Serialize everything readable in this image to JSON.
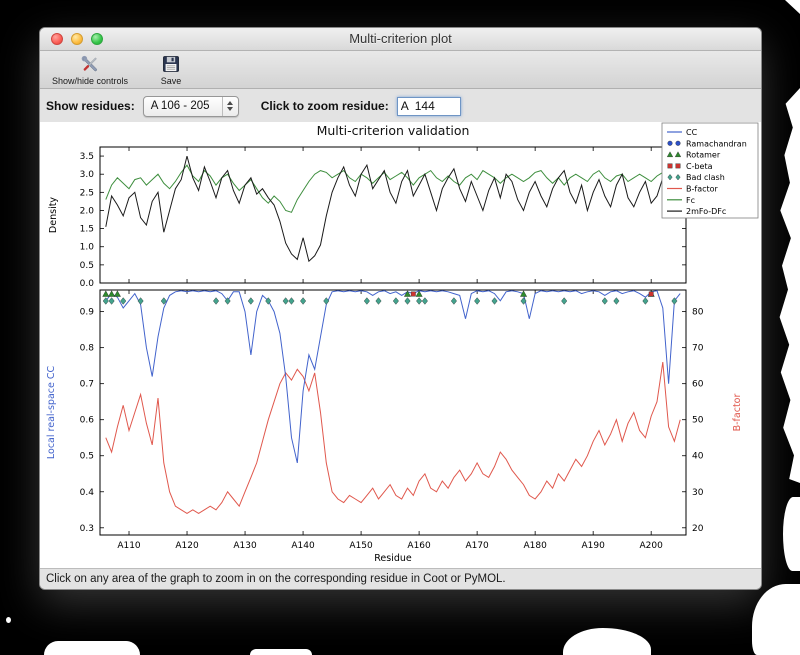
{
  "window": {
    "title": "Multi-criterion plot",
    "toolbar": {
      "show_hide_label": "Show/hide controls",
      "save_label": "Save"
    },
    "controls": {
      "show_residues_label": "Show residues:",
      "residue_range_value": "A 106 - 205",
      "zoom_label": "Click to zoom residue:",
      "zoom_value": "A  144"
    },
    "status_bar": "Click on any area of the graph to zoom in on the corresponding residue in Coot or PyMOL."
  },
  "chart_data": {
    "type": "line",
    "title": "Multi-criterion validation",
    "xlabel": "Residue",
    "x_range": [
      106,
      205
    ],
    "x_ticks": [
      "A110",
      "A120",
      "A130",
      "A140",
      "A150",
      "A160",
      "A170",
      "A180",
      "A190",
      "A200"
    ],
    "legend_position": "upper right outside",
    "legend": [
      {
        "label": "CC",
        "type": "line",
        "color": "#4263cc"
      },
      {
        "label": "Ramachandran",
        "type": "circle",
        "color": "#2c50c8"
      },
      {
        "label": "Rotamer",
        "type": "triangle",
        "color": "#2e8b2e"
      },
      {
        "label": "C-beta",
        "type": "square",
        "color": "#cc3430"
      },
      {
        "label": "Bad clash",
        "type": "diamond",
        "color": "#43a38d"
      },
      {
        "label": "B-factor",
        "type": "line",
        "color": "#e0584d"
      },
      {
        "label": "Fc",
        "type": "line",
        "color": "#3e8e3e"
      },
      {
        "label": "2mFo-DFc",
        "type": "line",
        "color": "#1a1a1a"
      }
    ],
    "marker_colors": {
      "rotamer": "#2e8b2e",
      "cbeta": "#cc3430",
      "clash": "#43a38d",
      "ramachandran": "#2c50c8"
    },
    "top_plot": {
      "ylabel": "Density",
      "ylim": [
        0.0,
        3.75
      ],
      "yticks": [
        0.0,
        0.5,
        1.0,
        1.5,
        2.0,
        2.5,
        3.0,
        3.5
      ],
      "series": [
        {
          "name": "Fc",
          "color": "#3e8e3e",
          "values": [
            2.3,
            2.7,
            2.9,
            2.75,
            2.6,
            2.85,
            2.9,
            2.7,
            2.85,
            3.0,
            2.75,
            2.6,
            2.8,
            3.05,
            3.25,
            2.95,
            2.8,
            3.1,
            2.95,
            2.7,
            2.9,
            3.0,
            2.75,
            2.55,
            2.7,
            2.85,
            2.6,
            2.35,
            2.2,
            2.4,
            2.25,
            2.0,
            1.95,
            2.3,
            2.55,
            2.8,
            3.0,
            3.1,
            3.05,
            2.9,
            3.0,
            3.1,
            2.9,
            2.8,
            3.0,
            2.9,
            2.75,
            2.9,
            3.05,
            2.85,
            2.95,
            3.05,
            2.9,
            2.7,
            2.9,
            3.0,
            3.1,
            2.9,
            2.8,
            2.95,
            2.8,
            2.7,
            2.9,
            3.0,
            2.85,
            3.1,
            3.0,
            2.9,
            2.75,
            2.9,
            3.0,
            2.9,
            2.8,
            2.9,
            3.05,
            3.1,
            2.9,
            2.75,
            2.9,
            2.7,
            2.9,
            3.0,
            2.9,
            2.8,
            3.0,
            3.1,
            2.9,
            2.8,
            2.95,
            3.0,
            2.8,
            2.9,
            3.0,
            2.9,
            2.8,
            2.95,
            3.05,
            2.9,
            2.8,
            2.9
          ]
        },
        {
          "name": "2mFo-DFc",
          "color": "#1a1a1a",
          "values": [
            1.55,
            2.4,
            2.15,
            1.85,
            2.35,
            2.5,
            1.8,
            1.6,
            2.25,
            2.5,
            1.4,
            2.0,
            2.6,
            2.85,
            3.5,
            2.9,
            2.55,
            3.2,
            2.8,
            2.35,
            2.9,
            3.1,
            2.55,
            2.2,
            2.7,
            2.9,
            2.45,
            2.6,
            2.35,
            2.15,
            1.7,
            1.1,
            0.8,
            0.65,
            1.25,
            0.6,
            0.75,
            1.05,
            1.85,
            2.5,
            2.9,
            3.2,
            2.7,
            2.4,
            3.0,
            3.25,
            2.6,
            2.85,
            3.1,
            2.5,
            2.2,
            2.8,
            3.1,
            2.4,
            2.7,
            3.0,
            2.5,
            2.0,
            2.6,
            2.9,
            3.15,
            2.6,
            2.25,
            2.8,
            2.4,
            2.0,
            2.55,
            2.9,
            2.35,
            3.0,
            2.8,
            2.3,
            2.0,
            2.5,
            2.8,
            2.4,
            2.1,
            2.6,
            2.9,
            3.1,
            2.5,
            2.2,
            2.7,
            2.0,
            2.5,
            2.85,
            2.4,
            2.1,
            2.7,
            3.0,
            2.35,
            2.1,
            2.5,
            2.8,
            2.2,
            2.4,
            2.9,
            2.5,
            2.15,
            2.45
          ]
        }
      ]
    },
    "bottom_plot": {
      "ylabel_left": "Local real-space CC",
      "ylabel_left_color": "#4263cc",
      "ylabel_right": "B-factor",
      "ylabel_right_color": "#e0584d",
      "ylim_left": [
        0.28,
        0.96
      ],
      "yticks_left": [
        0.3,
        0.4,
        0.5,
        0.6,
        0.7,
        0.8,
        0.9
      ],
      "ylim_right": [
        18,
        86
      ],
      "yticks_right": [
        20,
        30,
        40,
        50,
        60,
        70,
        80
      ],
      "cc_series": {
        "name": "CC",
        "color": "#4263cc",
        "values": [
          0.93,
          0.95,
          0.94,
          0.91,
          0.93,
          0.95,
          0.92,
          0.8,
          0.72,
          0.83,
          0.91,
          0.945,
          0.955,
          0.96,
          0.955,
          0.96,
          0.955,
          0.96,
          0.955,
          0.96,
          0.95,
          0.93,
          0.955,
          0.955,
          0.9,
          0.78,
          0.9,
          0.945,
          0.93,
          0.9,
          0.84,
          0.72,
          0.55,
          0.48,
          0.68,
          0.78,
          0.74,
          0.83,
          0.92,
          0.955,
          0.96,
          0.955,
          0.96,
          0.955,
          0.96,
          0.955,
          0.945,
          0.955,
          0.96,
          0.95,
          0.955,
          0.945,
          0.955,
          0.95,
          0.96,
          0.955,
          0.96,
          0.955,
          0.96,
          0.955,
          0.95,
          0.945,
          0.88,
          0.95,
          0.96,
          0.955,
          0.96,
          0.95,
          0.93,
          0.955,
          0.96,
          0.955,
          0.95,
          0.88,
          0.95,
          0.96,
          0.955,
          0.96,
          0.955,
          0.96,
          0.955,
          0.96,
          0.95,
          0.955,
          0.96,
          0.955,
          0.945,
          0.955,
          0.96,
          0.95,
          0.955,
          0.96,
          0.95,
          0.94,
          0.955,
          0.96,
          0.91,
          0.7,
          0.93,
          0.95
        ]
      },
      "bfactor_series": {
        "name": "B-factor",
        "color": "#e0584d",
        "values": [
          45,
          41,
          48,
          54,
          47,
          52,
          57,
          49,
          43,
          56,
          38,
          30,
          26,
          25,
          24,
          25,
          24,
          25,
          26,
          25,
          27,
          30,
          28,
          26,
          30,
          34,
          38,
          44,
          50,
          55,
          60,
          63,
          61,
          64,
          62,
          58,
          63,
          52,
          38,
          30,
          28,
          27,
          29,
          28,
          27,
          29,
          31,
          28,
          30,
          32,
          29,
          28,
          31,
          29,
          33,
          35,
          31,
          30,
          33,
          31,
          34,
          36,
          33,
          35,
          38,
          35,
          34,
          37,
          41,
          39,
          36,
          34,
          32,
          29,
          28,
          30,
          33,
          31,
          35,
          33,
          36,
          39,
          37,
          40,
          44,
          47,
          43,
          46,
          50,
          44,
          49,
          52,
          47,
          45,
          51,
          55,
          66,
          48,
          44,
          50
        ]
      },
      "markers": {
        "rotamer_residues": [
          106,
          107,
          108,
          158,
          160,
          178,
          200
        ],
        "cbeta_residues": [
          159,
          200
        ],
        "clash_residues": [
          106,
          107,
          109,
          112,
          116,
          125,
          127,
          131,
          134,
          137,
          138,
          140,
          144,
          151,
          153,
          156,
          158,
          160,
          161,
          166,
          170,
          173,
          178,
          185,
          192,
          194,
          199,
          204
        ],
        "ramachandran_residues": []
      }
    }
  }
}
